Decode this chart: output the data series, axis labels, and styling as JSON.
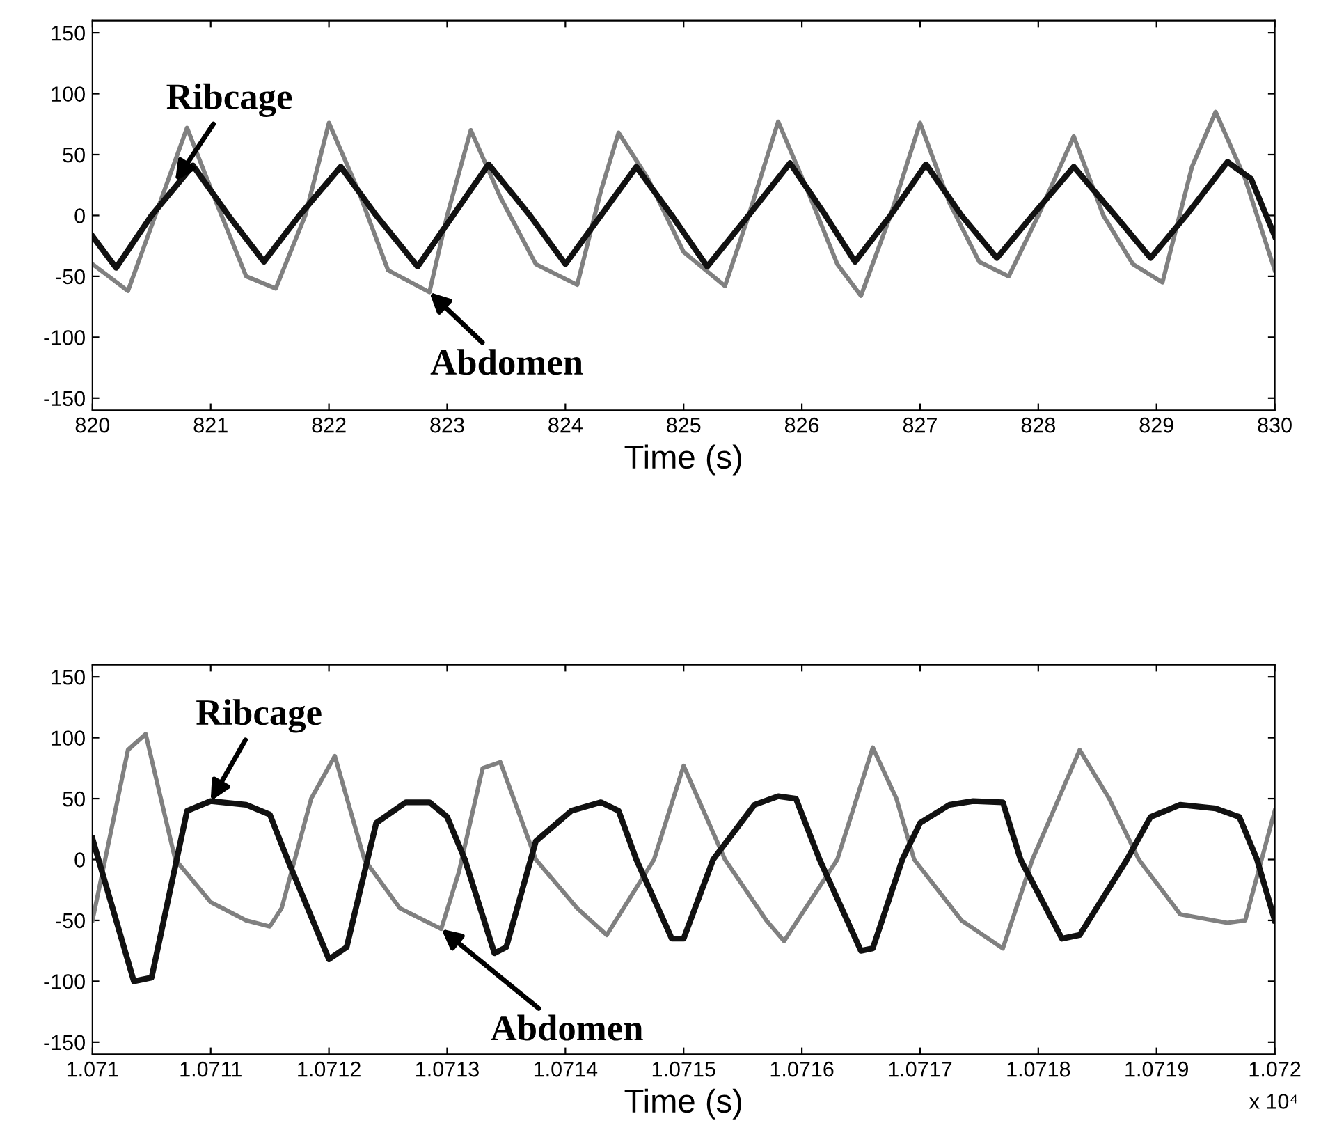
{
  "chart_data": [
    {
      "type": "line",
      "xlabel": "Time (s)",
      "xlim": [
        820,
        830
      ],
      "ylim": [
        -160,
        160
      ],
      "xticks": [
        820,
        821,
        822,
        823,
        824,
        825,
        826,
        827,
        828,
        829,
        830
      ],
      "yticks": [
        -150,
        -100,
        -50,
        0,
        50,
        100,
        150
      ],
      "grid": false,
      "legend": false,
      "series": [
        {
          "color": "#808080",
          "x": [
            820,
            820.3,
            820.55,
            820.8,
            821.05,
            821.3,
            821.55,
            821.8,
            822.0,
            822.25,
            822.5,
            822.85,
            823.0,
            823.2,
            823.45,
            823.75,
            824.1,
            824.3,
            824.45,
            824.7,
            825.0,
            825.35,
            825.55,
            825.8,
            826.05,
            826.3,
            826.5,
            826.75,
            827.0,
            827.25,
            827.5,
            827.75,
            828.0,
            828.3,
            828.55,
            828.8,
            829.05,
            829.3,
            829.5,
            829.75,
            830
          ],
          "values": [
            -40,
            -62,
            5,
            72,
            10,
            -50,
            -60,
            0,
            76,
            20,
            -45,
            -63,
            0,
            70,
            15,
            -40,
            -57,
            20,
            68,
            30,
            -30,
            -58,
            0,
            77,
            20,
            -40,
            -66,
            0,
            76,
            10,
            -38,
            -50,
            0,
            65,
            0,
            -40,
            -55,
            40,
            85,
            30,
            -45
          ]
        },
        {
          "color": "#111111",
          "x": [
            820,
            820.2,
            820.5,
            820.85,
            821.15,
            821.45,
            821.75,
            822.1,
            822.4,
            822.75,
            823.05,
            823.35,
            823.7,
            824.0,
            824.3,
            824.6,
            824.9,
            825.2,
            825.55,
            825.9,
            826.2,
            826.45,
            826.75,
            827.05,
            827.35,
            827.65,
            827.95,
            828.3,
            828.65,
            828.95,
            829.25,
            829.6,
            829.8,
            830
          ],
          "values": [
            -17,
            -43,
            0,
            41,
            0,
            -38,
            0,
            40,
            0,
            -42,
            0,
            42,
            0,
            -40,
            0,
            40,
            0,
            -42,
            0,
            43,
            0,
            -38,
            0,
            42,
            0,
            -35,
            0,
            40,
            0,
            -35,
            0,
            44,
            30,
            -17
          ]
        }
      ],
      "annotations": [
        {
          "text": "Ribcage",
          "x": 820.7,
          "y": 28
        },
        {
          "text": "Abdomen",
          "x": 822.85,
          "y": -63
        }
      ]
    },
    {
      "type": "line",
      "xlabel": "Time (s)",
      "xlim": [
        1.071,
        1.072
      ],
      "ylim": [
        -160,
        160
      ],
      "xticks": [
        1.071,
        1.0711,
        1.0712,
        1.0713,
        1.0714,
        1.0715,
        1.0716,
        1.0717,
        1.0718,
        1.0719,
        1.072
      ],
      "yticks": [
        -150,
        -100,
        -50,
        0,
        50,
        100,
        150
      ],
      "grid": false,
      "legend": false,
      "series": [
        {
          "color": "#808080",
          "x": [
            1.071,
            1.07103,
            1.071045,
            1.07107,
            1.0711,
            1.07113,
            1.07115,
            1.07116,
            1.071185,
            1.071205,
            1.07123,
            1.07126,
            1.071295,
            1.07131,
            1.07133,
            1.071345,
            1.071375,
            1.07141,
            1.071435,
            1.071475,
            1.0715,
            1.071535,
            1.07157,
            1.071585,
            1.07163,
            1.07166,
            1.07168,
            1.071695,
            1.071735,
            1.07177,
            1.071795,
            1.071835,
            1.07186,
            1.071885,
            1.07192,
            1.07196,
            1.071975,
            1.072
          ],
          "values": [
            -50,
            90,
            103,
            0,
            -35,
            -50,
            -55,
            -40,
            50,
            85,
            0,
            -40,
            -57,
            -10,
            75,
            80,
            0,
            -40,
            -62,
            0,
            77,
            0,
            -50,
            -67,
            0,
            92,
            50,
            0,
            -50,
            -73,
            0,
            90,
            50,
            0,
            -45,
            -52,
            -50,
            40
          ]
        },
        {
          "color": "#111111",
          "x": [
            1.071,
            1.071035,
            1.07105,
            1.07108,
            1.0711,
            1.07113,
            1.07115,
            1.071165,
            1.0712,
            1.071215,
            1.07124,
            1.071265,
            1.071285,
            1.0713,
            1.071315,
            1.07134,
            1.07135,
            1.071375,
            1.071405,
            1.07143,
            1.071445,
            1.07146,
            1.07149,
            1.0715,
            1.071525,
            1.07156,
            1.07158,
            1.071595,
            1.071615,
            1.07165,
            1.07166,
            1.071685,
            1.0717,
            1.071725,
            1.071745,
            1.07177,
            1.071785,
            1.07182,
            1.071835,
            1.071875,
            1.071895,
            1.07192,
            1.07195,
            1.07197,
            1.071985,
            1.072
          ],
          "values": [
            17,
            -100,
            -97,
            40,
            48,
            45,
            37,
            0,
            -82,
            -72,
            30,
            47,
            47,
            35,
            0,
            -77,
            -72,
            15,
            40,
            47,
            40,
            0,
            -65,
            -65,
            0,
            45,
            52,
            50,
            0,
            -75,
            -73,
            0,
            30,
            45,
            48,
            47,
            0,
            -65,
            -62,
            0,
            35,
            45,
            42,
            35,
            0,
            -50
          ]
        }
      ],
      "annotations": [
        {
          "text": "Ribcage",
          "x": 1.0711,
          "y": 48
        },
        {
          "text": "Abdomen",
          "x": 1.071295,
          "y": -57
        },
        "x 10⁴"
      ]
    }
  ]
}
